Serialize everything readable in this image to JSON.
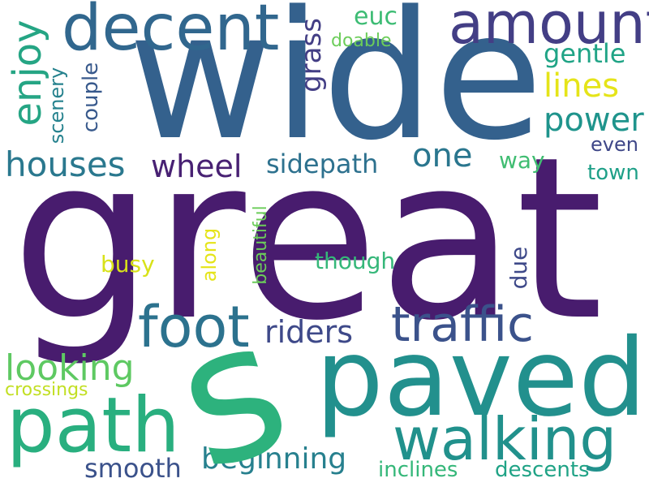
{
  "words": {
    "great": {
      "text": "great",
      "color": "#481c6e"
    },
    "wide": {
      "text": "wide",
      "color": "#34618d"
    },
    "s": {
      "text": "s",
      "color": "#2db27d"
    },
    "paved": {
      "text": "paved",
      "color": "#22908d"
    },
    "decent": {
      "text": "decent",
      "color": "#31678e"
    },
    "amount": {
      "text": "amount",
      "color": "#433e85"
    },
    "path": {
      "text": "path",
      "color": "#29af7f"
    },
    "walking": {
      "text": "walking",
      "color": "#21918c"
    },
    "foot": {
      "text": "foot",
      "color": "#2c728e"
    },
    "traffic": {
      "text": "traffic",
      "color": "#3b528b"
    },
    "enjoy": {
      "text": "enjoy",
      "color": "#25a584"
    },
    "houses": {
      "text": "houses",
      "color": "#2a788e"
    },
    "power": {
      "text": "power",
      "color": "#1f948c"
    },
    "lines": {
      "text": "lines",
      "color": "#e5e419"
    },
    "one": {
      "text": "one",
      "color": "#2a768e"
    },
    "wheel": {
      "text": "wheel",
      "color": "#482173"
    },
    "sidepath": {
      "text": "sidepath",
      "color": "#2d718e"
    },
    "grass": {
      "text": "grass",
      "color": "#433e85"
    },
    "euc": {
      "text": "euc",
      "color": "#3dbc74"
    },
    "gentle": {
      "text": "gentle",
      "color": "#20a486"
    },
    "doable": {
      "text": "doable",
      "color": "#6ccd5a"
    },
    "couple": {
      "text": "couple",
      "color": "#38598c"
    },
    "scenery": {
      "text": "scenery",
      "color": "#26828e"
    },
    "even": {
      "text": "even",
      "color": "#3f4788"
    },
    "way": {
      "text": "way",
      "color": "#40bd72"
    },
    "town": {
      "text": "town",
      "color": "#1fa088"
    },
    "riders": {
      "text": "riders",
      "color": "#3e4989"
    },
    "looking": {
      "text": "looking",
      "color": "#5ec962"
    },
    "crossings": {
      "text": "crossings",
      "color": "#c2df23"
    },
    "beginning": {
      "text": "beginning",
      "color": "#27808e"
    },
    "smooth": {
      "text": "smooth",
      "color": "#3b528b"
    },
    "inclines": {
      "text": "inclines",
      "color": "#35b779"
    },
    "descents": {
      "text": "descents",
      "color": "#20a386"
    },
    "though": {
      "text": "though",
      "color": "#35b779"
    },
    "busy": {
      "text": "busy",
      "color": "#d8e219"
    },
    "along": {
      "text": "along",
      "color": "#e5e419"
    },
    "beautiful": {
      "text": "beautiful",
      "color": "#6ccd5a"
    },
    "due": {
      "text": "due",
      "color": "#3e4989"
    }
  }
}
